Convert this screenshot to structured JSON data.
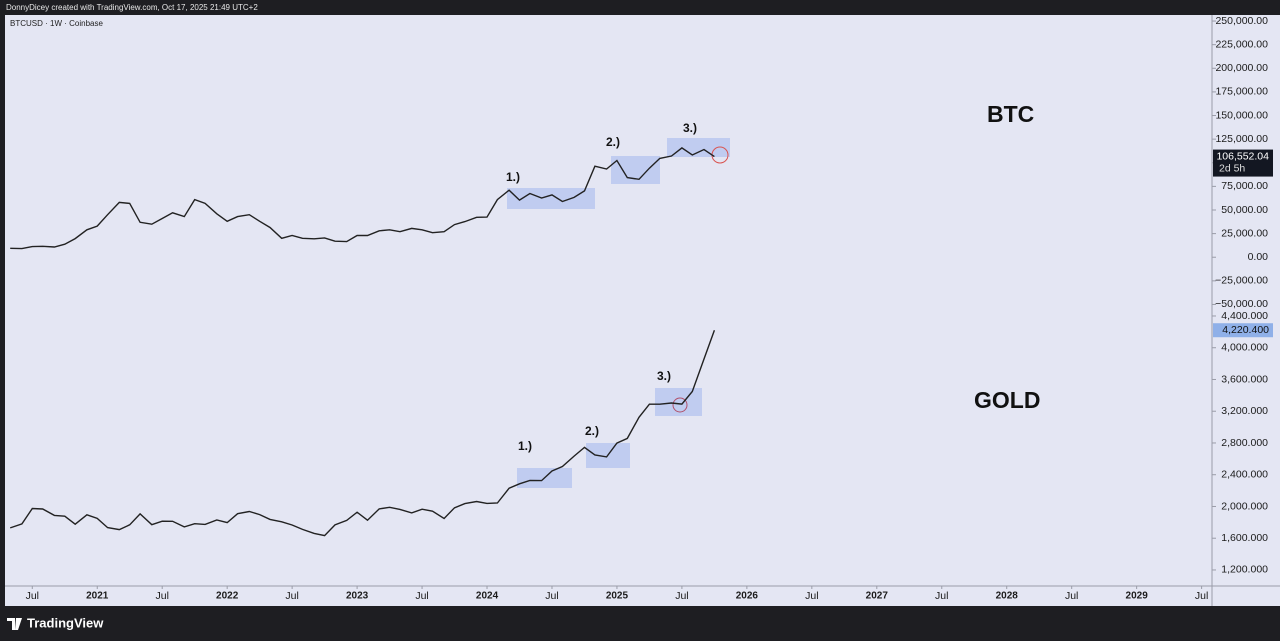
{
  "header": "DonnyDicey created with TradingView.com, Oct 17, 2025 21:49 UTC+2",
  "symbol": "BTCUSD · 1W · Coinbase",
  "logo": "TradingView",
  "chart_data": [
    {
      "type": "line",
      "title": "BTC",
      "color": "#222222",
      "annotations": [
        "1.)",
        "2.)",
        "3.)"
      ],
      "last_value_label": "106,552.04",
      "countdown": "2d 5h",
      "xlim": [
        2020.29,
        2029.58
      ],
      "xticks": [
        {
          "value": 2020.5,
          "label": "Jul"
        },
        2021,
        {
          "value": 2021.5,
          "label": "Jul"
        },
        2022,
        {
          "value": 2022.5,
          "label": "Jul"
        },
        2023,
        {
          "value": 2023.5,
          "label": "Jul"
        },
        2024,
        {
          "value": 2024.5,
          "label": "Jul"
        },
        2025,
        {
          "value": 2025.5,
          "label": "Jul"
        },
        2026,
        {
          "value": 2026.5,
          "label": "Jul"
        },
        2027,
        {
          "value": 2027.5,
          "label": "Jul"
        },
        2028,
        {
          "value": 2028.5,
          "label": "Jul"
        },
        2029,
        {
          "value": 2029.5,
          "label": "Jul"
        }
      ],
      "ylim": [
        -348000,
        256400
      ],
      "yticks": [
        {
          "value": 250000,
          "label": "250,000.00"
        },
        {
          "value": 225000,
          "label": "225,000.00"
        },
        {
          "value": 200000,
          "label": "200,000.00"
        },
        {
          "value": 175000,
          "label": "175,000.00"
        },
        {
          "value": 150000,
          "label": "150,000.00"
        },
        {
          "value": 125000,
          "label": "125,000.00"
        },
        {
          "value": 100000,
          "label": "100,000.00"
        },
        {
          "value": 75000,
          "label": "75,000.00"
        },
        {
          "value": 50000,
          "label": "50,000.00"
        },
        {
          "value": 25000,
          "label": "25,000.00"
        },
        {
          "value": 0,
          "label": "0.00"
        },
        {
          "value": -25000,
          "label": "−25,000.00"
        },
        {
          "value": -50000,
          "label": "−50,000.00"
        }
      ],
      "x": [
        2020.33,
        2020.42,
        2020.5,
        2020.58,
        2020.67,
        2020.75,
        2020.83,
        2020.92,
        2021,
        2021.08,
        2021.17,
        2021.25,
        2021.33,
        2021.42,
        2021.5,
        2021.58,
        2021.67,
        2021.75,
        2021.83,
        2021.92,
        2022,
        2022.08,
        2022.17,
        2022.25,
        2022.33,
        2022.42,
        2022.5,
        2022.58,
        2022.67,
        2022.75,
        2022.83,
        2022.92,
        2023,
        2023.08,
        2023.17,
        2023.25,
        2023.33,
        2023.42,
        2023.5,
        2023.58,
        2023.67,
        2023.75,
        2023.83,
        2023.92,
        2024,
        2024.08,
        2024.17,
        2024.25,
        2024.33,
        2024.42,
        2024.5,
        2024.58,
        2024.67,
        2024.75,
        2024.83,
        2024.92,
        2025,
        2025.08,
        2025.17,
        2025.25,
        2025.33,
        2025.42,
        2025.5,
        2025.58,
        2025.67,
        2025.75
      ],
      "values": [
        9500,
        9100,
        11300,
        11600,
        10800,
        13800,
        19700,
        29000,
        33000,
        45000,
        58000,
        57000,
        37000,
        35000,
        41000,
        47000,
        43000,
        61000,
        57000,
        46000,
        38000,
        43000,
        45000,
        38000,
        31500,
        20000,
        23000,
        20000,
        19500,
        20500,
        17000,
        16500,
        23000,
        23000,
        28000,
        29000,
        27000,
        30500,
        29000,
        26000,
        27000,
        34500,
        37700,
        42300,
        42500,
        61000,
        71000,
        60500,
        67500,
        62700,
        66000,
        59000,
        63300,
        70200,
        96400,
        93400,
        102400,
        84300,
        82500,
        94200,
        104600,
        107100,
        115700,
        108200,
        114000,
        106552.04
      ]
    },
    {
      "type": "line",
      "title": "GOLD",
      "color": "#222222",
      "annotations": [
        "1.)",
        "2.)",
        "3.)"
      ],
      "last_value_label": "4,220.400",
      "xlim": [
        2020.29,
        2029.58
      ],
      "ylim": [
        998,
        8192
      ],
      "yticks": [
        {
          "value": 4400,
          "label": "4,400.000"
        },
        {
          "value": 4000,
          "label": "4,000.000"
        },
        {
          "value": 3600,
          "label": "3,600.000"
        },
        {
          "value": 3200,
          "label": "3,200.000"
        },
        {
          "value": 2800,
          "label": "2,800.000"
        },
        {
          "value": 2400,
          "label": "2,400.000"
        },
        {
          "value": 2000,
          "label": "2,000.000"
        },
        {
          "value": 1600,
          "label": "1,600.000"
        },
        {
          "value": 1200,
          "label": "1,200.000"
        }
      ],
      "x": [
        2020.33,
        2020.42,
        2020.5,
        2020.58,
        2020.67,
        2020.75,
        2020.83,
        2020.92,
        2021,
        2021.08,
        2021.17,
        2021.25,
        2021.33,
        2021.42,
        2021.5,
        2021.58,
        2021.67,
        2021.75,
        2021.83,
        2021.92,
        2022,
        2022.08,
        2022.17,
        2022.25,
        2022.33,
        2022.42,
        2022.5,
        2022.58,
        2022.67,
        2022.75,
        2022.83,
        2022.92,
        2023,
        2023.08,
        2023.17,
        2023.25,
        2023.33,
        2023.42,
        2023.5,
        2023.58,
        2023.67,
        2023.75,
        2023.83,
        2023.92,
        2024,
        2024.08,
        2024.17,
        2024.25,
        2024.33,
        2024.42,
        2024.5,
        2024.58,
        2024.67,
        2024.75,
        2024.83,
        2024.92,
        2025,
        2025.08,
        2025.17,
        2025.25,
        2025.33,
        2025.42,
        2025.5,
        2025.58,
        2025.67,
        2025.75
      ],
      "values": [
        1730,
        1780,
        1975,
        1968,
        1887,
        1878,
        1776,
        1895,
        1850,
        1734,
        1708,
        1769,
        1906,
        1770,
        1814,
        1813,
        1743,
        1783,
        1774,
        1829,
        1797,
        1909,
        1937,
        1897,
        1837,
        1807,
        1766,
        1711,
        1661,
        1633,
        1768,
        1824,
        1928,
        1827,
        1969,
        1990,
        1963,
        1919,
        1965,
        1940,
        1849,
        1983,
        2036,
        2063,
        2039,
        2044,
        2230,
        2286,
        2327,
        2326,
        2447,
        2503,
        2634,
        2744,
        2650,
        2624,
        2798,
        2857,
        3124,
        3288,
        3289,
        3303,
        3290,
        3448,
        3858,
        4220.4
      ]
    }
  ]
}
